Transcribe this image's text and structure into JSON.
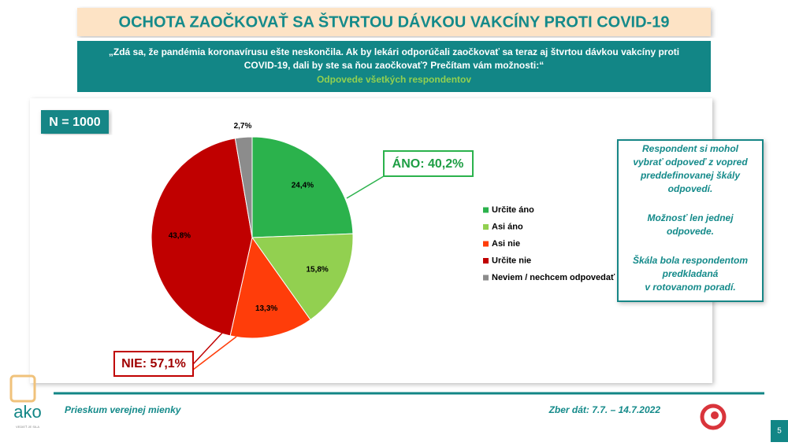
{
  "chart_data": {
    "type": "pie",
    "title": "OCHOTA ZAOČKOVAŤ SA ŠTVRTOU DÁVKOU VAKCÍNY PROTI COVID-19",
    "question": [
      "„Zdá sa, že pandémia koronavírusu ešte neskončila. Ak by lekári odporúčali zaočkovať sa teraz aj štvrtou dávkou vakcíny proti",
      "COVID-19, dali by ste sa ňou zaočkovať? Prečítam vám možnosti:“"
    ],
    "subtitle": "Odpovede všetkých respondentov",
    "sample": "N = 1000",
    "categories": [
      "Určite áno",
      "Asi áno",
      "Asi nie",
      "Určite nie",
      "Neviem / nechcem odpovedať"
    ],
    "values": [
      24.4,
      15.8,
      13.3,
      43.8,
      2.7
    ],
    "value_labels": [
      "24,4%",
      "15,8%",
      "13,3%",
      "43,8%",
      "2,7%"
    ],
    "colors": [
      "#2bb24c",
      "#92d050",
      "#ff3d0a",
      "#c00000",
      "#8c8c8c"
    ],
    "annotations": [
      "ÁNO: 40,2%",
      "NIE: 57,1%"
    ],
    "legend": "right"
  },
  "note": [
    "Respondent si mohol",
    "vybrať odpoveď z vopred",
    "preddefinovanej škály",
    "odpovedí.",
    "Možnosť len jednej",
    "odpovede.",
    "Škála bola respondentom",
    "predkladaná",
    "v rotovanom poradí."
  ],
  "footer": {
    "left": "Prieskum verejnej mienky",
    "right": "Zber dát: 7.7. – 14.7.2022",
    "page": "5"
  },
  "logo": {
    "name": "ako",
    "tagline": "VEDIEŤ JE SILA"
  }
}
